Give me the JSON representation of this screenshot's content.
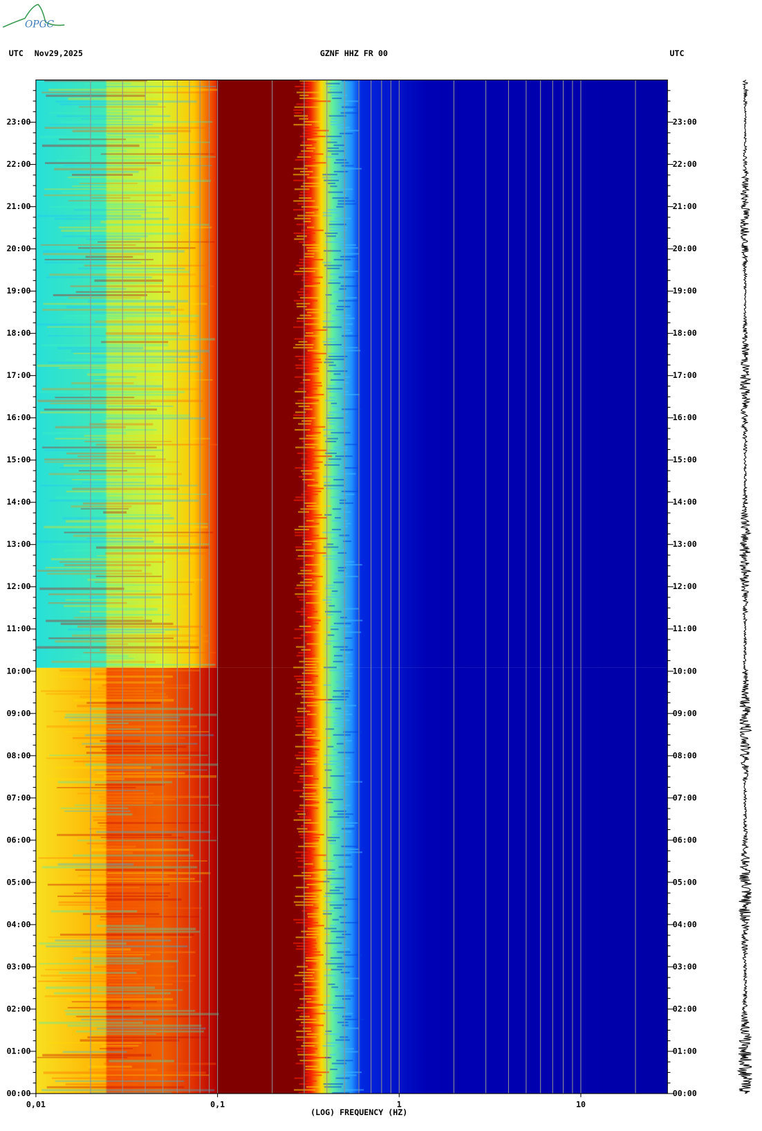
{
  "chart_data": {
    "type": "spectrogram",
    "logo": "OPGC",
    "title": "GZNF HHZ FR 00",
    "date": "Nov29,2025",
    "ylabel_left": "UTC",
    "ylabel_right": "UTC",
    "xlabel": "(LOG) FREQUENCY (HZ)",
    "xscale": "log",
    "xlim": [
      0.01,
      30
    ],
    "xticks": [
      {
        "value": 0.01,
        "label": "0,01"
      },
      {
        "value": 0.1,
        "label": "0,1"
      },
      1,
      10
    ],
    "xgrid": [
      0.02,
      0.03,
      0.04,
      0.05,
      0.06,
      0.07,
      0.08,
      0.09,
      0.1,
      0.2,
      0.3,
      0.4,
      0.5,
      0.6,
      0.7,
      0.8,
      0.9,
      1,
      2,
      3,
      4,
      5,
      6,
      7,
      8,
      9,
      10,
      20
    ],
    "ylim": [
      0,
      24
    ],
    "yticks": [
      {
        "value": 0,
        "label": "00:00"
      },
      {
        "value": 1,
        "label": "01:00"
      },
      {
        "value": 2,
        "label": "02:00"
      },
      {
        "value": 3,
        "label": "03:00"
      },
      {
        "value": 4,
        "label": "04:00"
      },
      {
        "value": 5,
        "label": "05:00"
      },
      {
        "value": 6,
        "label": "06:00"
      },
      {
        "value": 7,
        "label": "07:00"
      },
      {
        "value": 8,
        "label": "08:00"
      },
      {
        "value": 9,
        "label": "09:00"
      },
      {
        "value": 10,
        "label": "10:00"
      },
      {
        "value": 11,
        "label": "11:00"
      },
      {
        "value": 12,
        "label": "12:00"
      },
      {
        "value": 13,
        "label": "13:00"
      },
      {
        "value": 14,
        "label": "14:00"
      },
      {
        "value": 15,
        "label": "15:00"
      },
      {
        "value": 16,
        "label": "16:00"
      },
      {
        "value": 17,
        "label": "17:00"
      },
      {
        "value": 18,
        "label": "18:00"
      },
      {
        "value": 19,
        "label": "19:00"
      },
      {
        "value": 20,
        "label": "20:00"
      },
      {
        "value": 21,
        "label": "21:00"
      },
      {
        "value": 22,
        "label": "22:00"
      },
      {
        "value": 23,
        "label": "23:00"
      }
    ]
  }
}
